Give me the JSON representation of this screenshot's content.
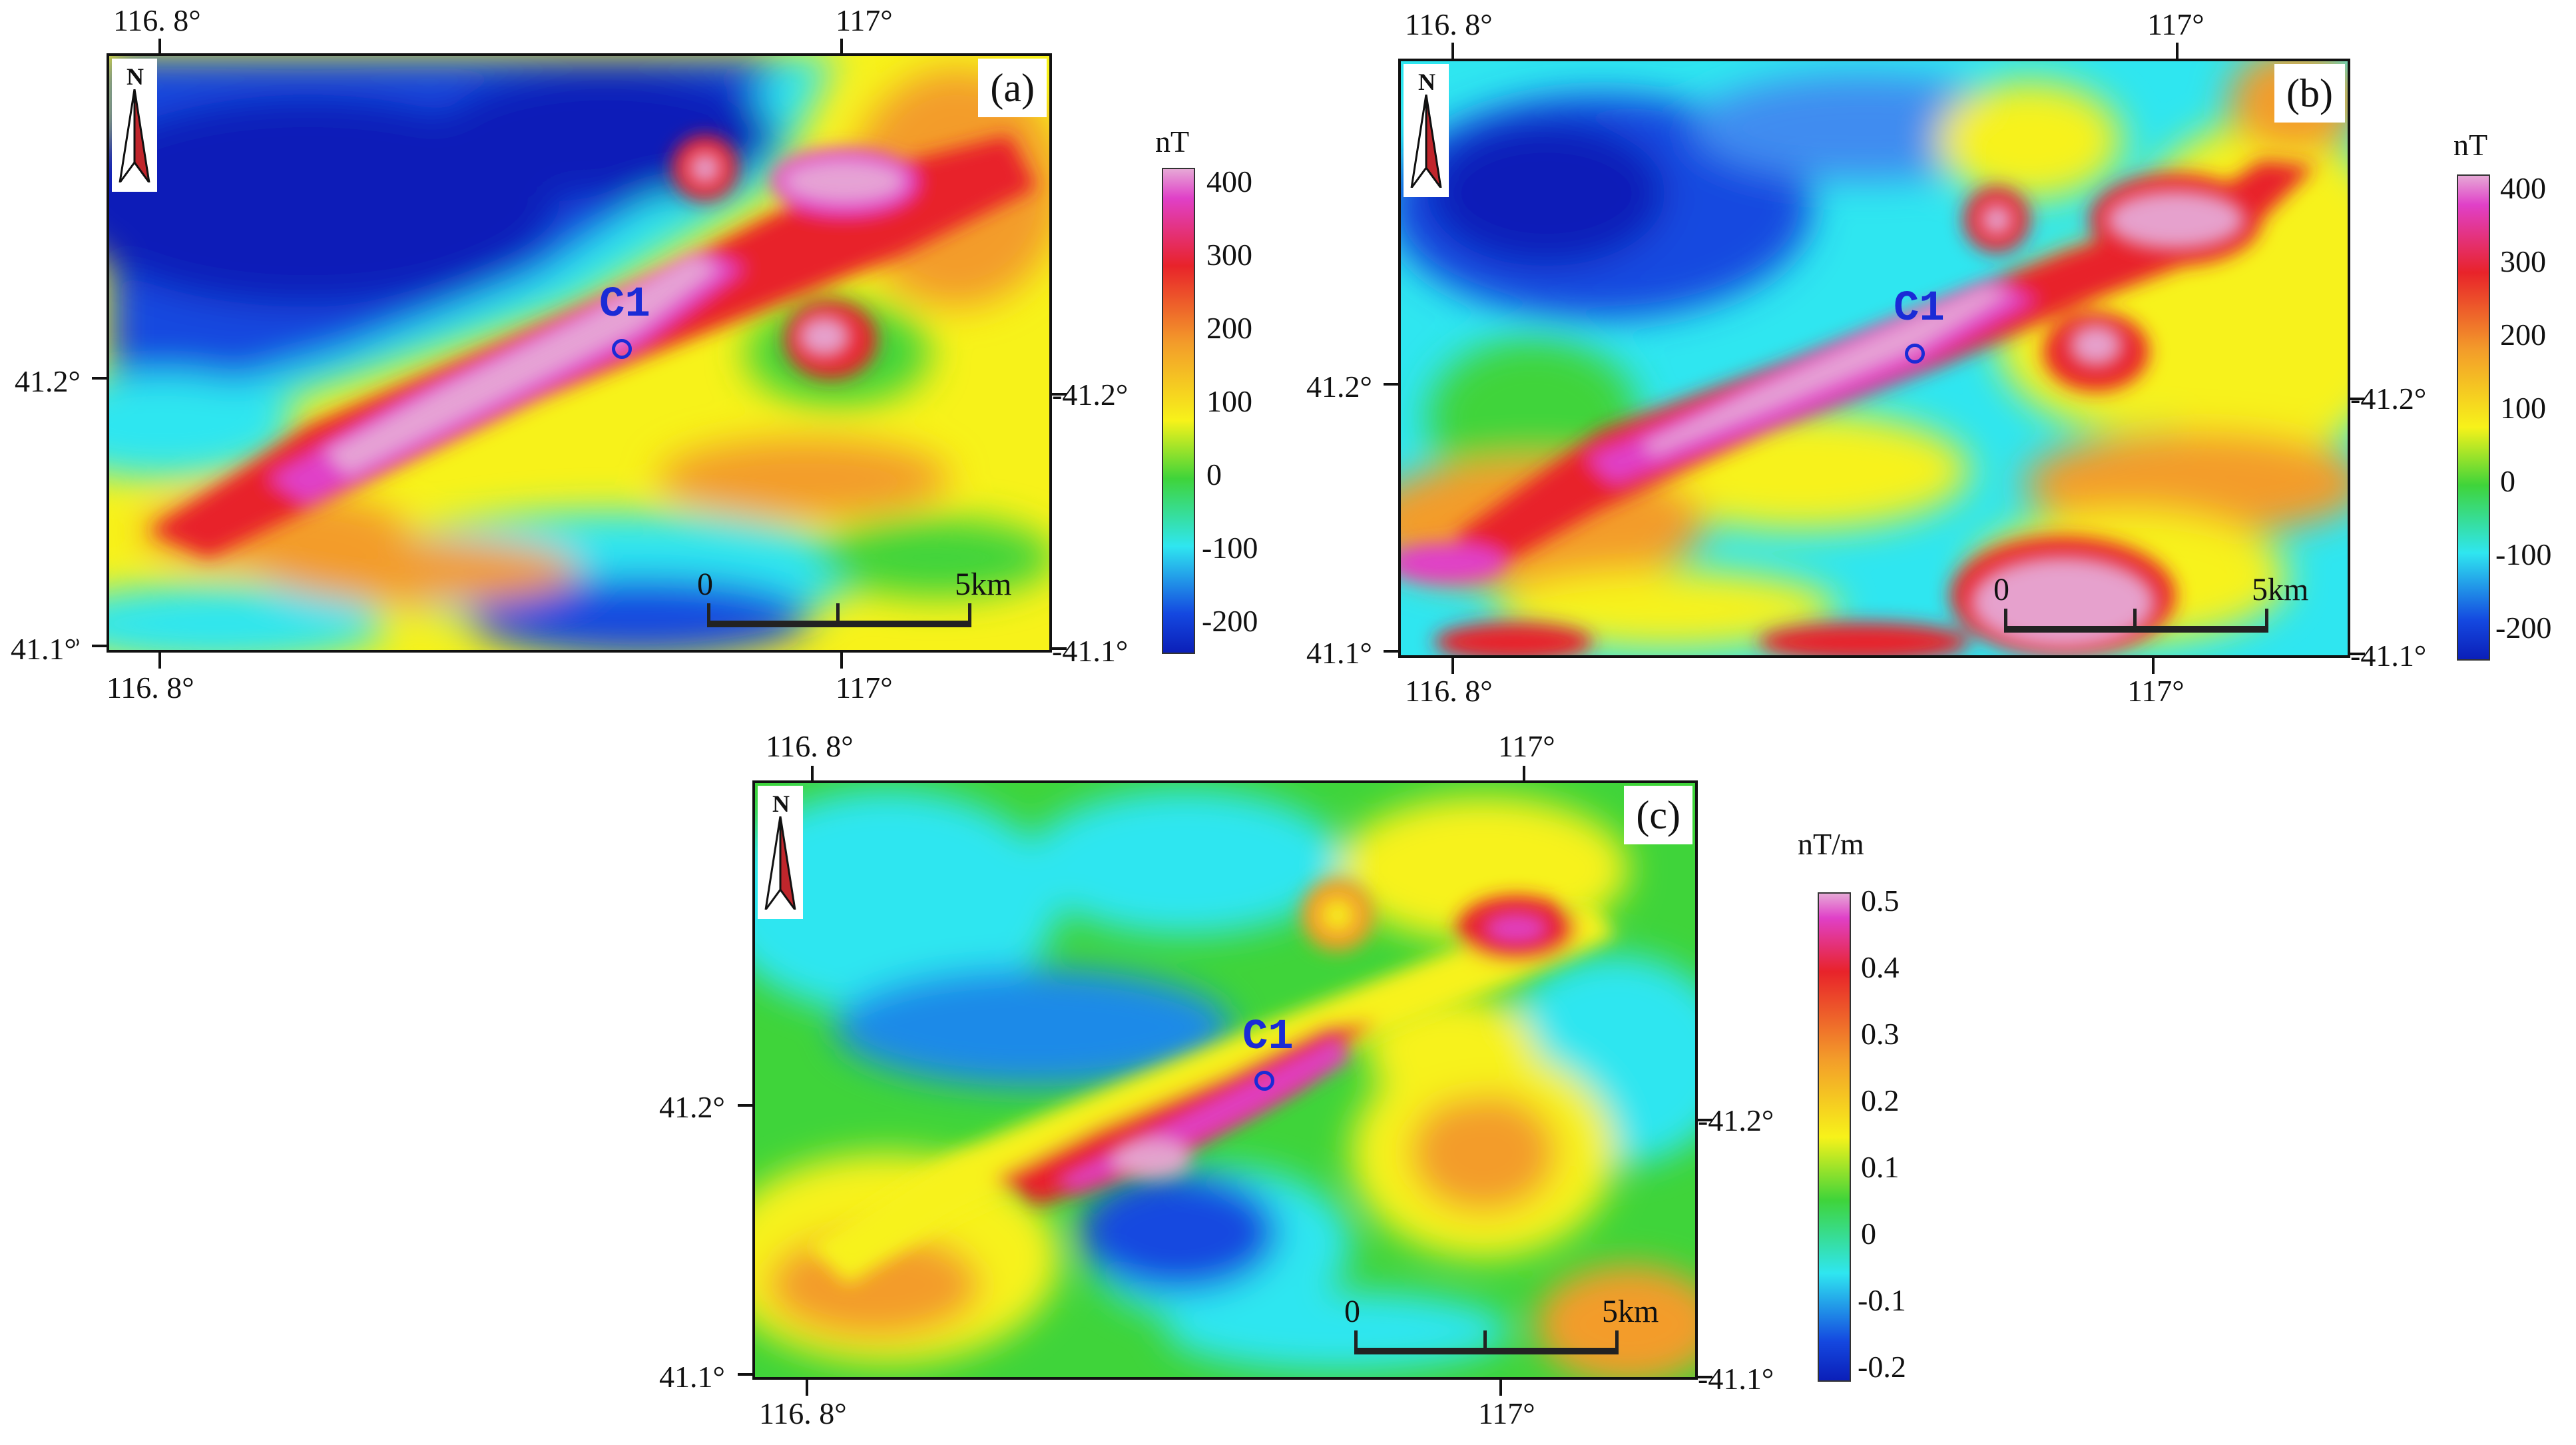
{
  "coords": {
    "lon_left": "116. 8°",
    "lon_right": "117°",
    "lat_top": "41.2°",
    "lat_bottom": "41.1°",
    "lat_top_right": "-41.2°",
    "lat_bottom_right": "-41.1°"
  },
  "panels": [
    {
      "letter": "(a)",
      "unit": "nT",
      "colorbar_labels": [
        "400",
        "300",
        "200",
        "100",
        "0",
        "-100",
        "-200"
      ],
      "site": "C1",
      "scale": {
        "start": "0",
        "end": "5km"
      }
    },
    {
      "letter": "(b)",
      "unit": "nT",
      "colorbar_labels": [
        "400",
        "300",
        "200",
        "100",
        "0",
        "-100",
        "-200"
      ],
      "site": "C1",
      "scale": {
        "start": "0",
        "end": "5km"
      }
    },
    {
      "letter": "(c)",
      "unit": "nT/m",
      "colorbar_labels": [
        "0.5",
        "0.4",
        "0.3",
        "0.2",
        "0.1",
        "0",
        "-0.1",
        "-0.2"
      ],
      "site": "C1",
      "scale": {
        "start": "0",
        "end": "5km"
      }
    }
  ],
  "north_label": "N",
  "colors": {
    "pink": "#e6a8d6",
    "magenta": "#e040c8",
    "red": "#e8232a",
    "orange": "#f39c2a",
    "yellow": "#f7f21a",
    "green": "#3fd43a",
    "cyan": "#2fe6f0",
    "blue": "#1448e0",
    "deep_blue": "#0b1fb8",
    "marker": "#1a2bd6"
  }
}
